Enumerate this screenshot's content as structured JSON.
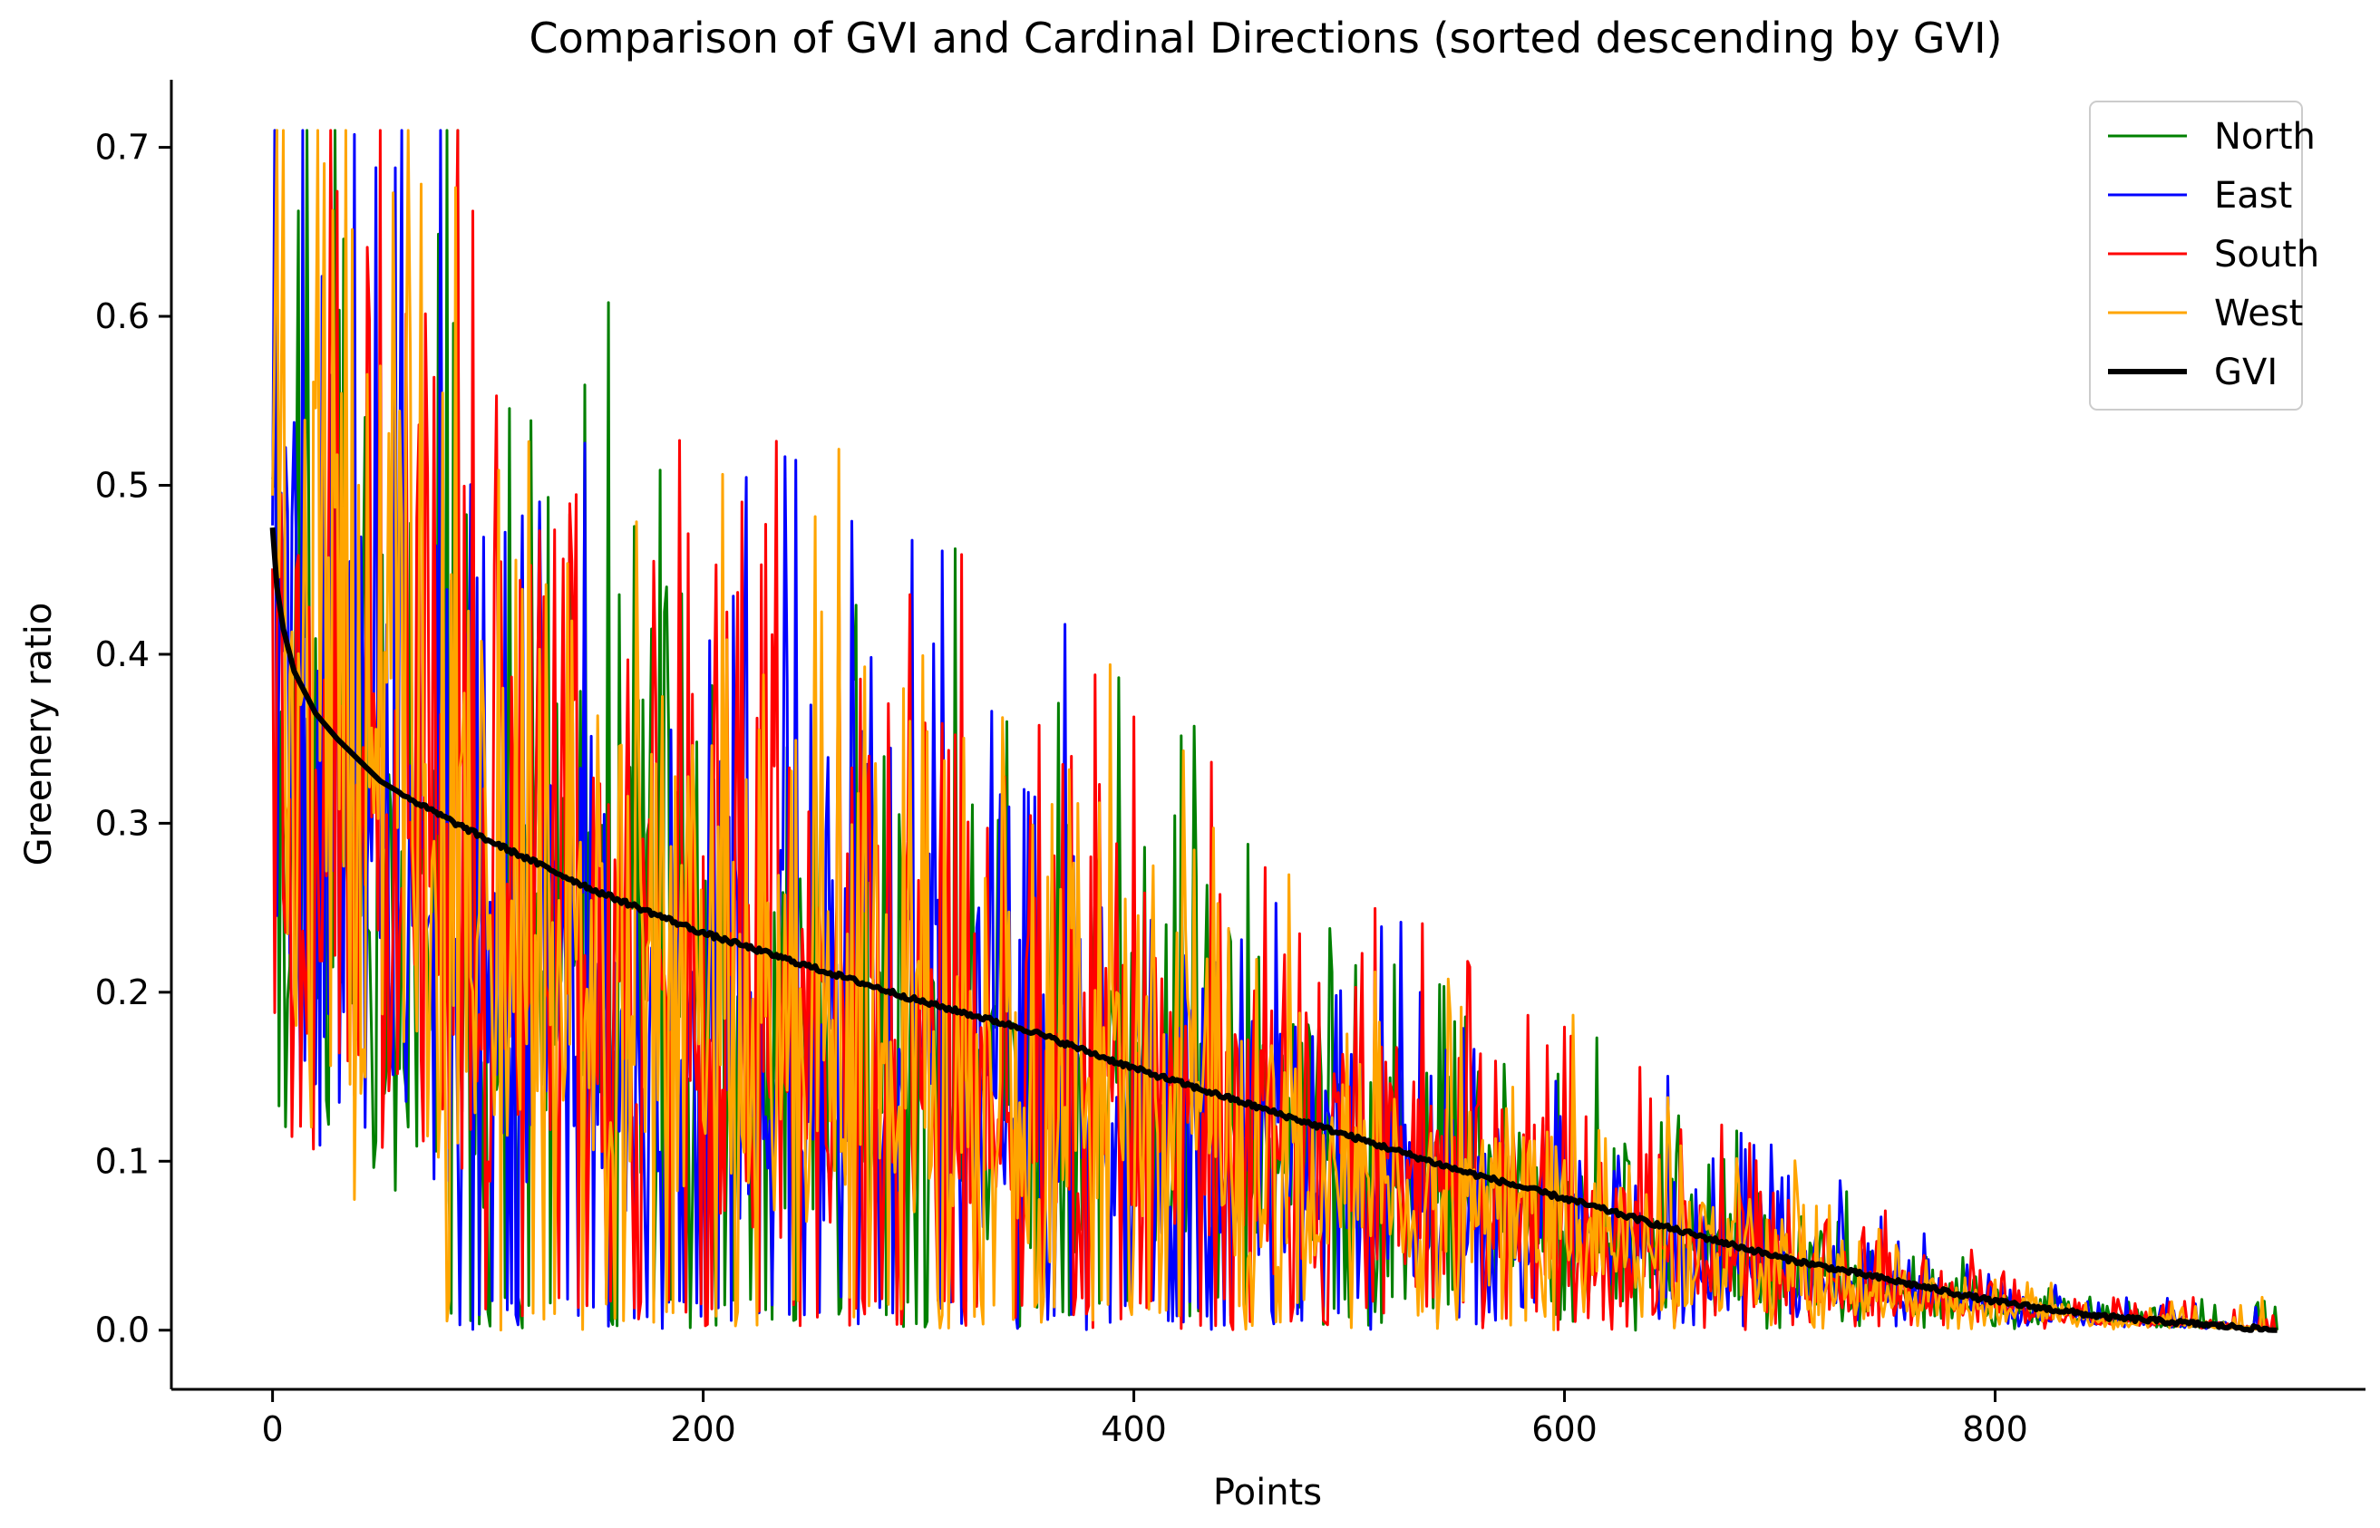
{
  "chart_data": {
    "type": "line",
    "title": "Comparison of GVI and Cardinal Directions (sorted descending by GVI)",
    "xlabel": "Points",
    "ylabel": "Greenery ratio",
    "xlim": [
      -47,
      972
    ],
    "ylim": [
      -0.035,
      0.74
    ],
    "xticks": [
      0,
      200,
      400,
      600,
      800
    ],
    "yticks": [
      0.0,
      0.1,
      0.2,
      0.3,
      0.4,
      0.5,
      0.6,
      0.7
    ],
    "xtick_labels": [
      "0",
      "200",
      "400",
      "600",
      "800"
    ],
    "ytick_labels": [
      "0.0",
      "0.1",
      "0.2",
      "0.3",
      "0.4",
      "0.5",
      "0.6",
      "0.7"
    ],
    "n_points": 932,
    "legend_position": "top-right",
    "gvi_anchors": {
      "x": [
        0,
        2,
        5,
        10,
        20,
        30,
        50,
        70,
        100,
        150,
        200,
        250,
        300,
        350,
        400,
        450,
        500,
        550,
        600,
        650,
        700,
        750,
        800,
        850,
        900,
        931
      ],
      "y": [
        0.475,
        0.44,
        0.415,
        0.39,
        0.365,
        0.35,
        0.325,
        0.31,
        0.29,
        0.26,
        0.235,
        0.215,
        0.195,
        0.178,
        0.155,
        0.135,
        0.115,
        0.095,
        0.078,
        0.06,
        0.043,
        0.03,
        0.017,
        0.008,
        0.003,
        0.0
      ]
    },
    "series": [
      {
        "name": "North",
        "color": "#008000",
        "line_width": 3
      },
      {
        "name": "East",
        "color": "#0000ff",
        "line_width": 3
      },
      {
        "name": "South",
        "color": "#ff0000",
        "line_width": 3
      },
      {
        "name": "West",
        "color": "#ffa500",
        "line_width": 3
      },
      {
        "name": "GVI",
        "color": "#000000",
        "line_width": 6
      }
    ]
  }
}
